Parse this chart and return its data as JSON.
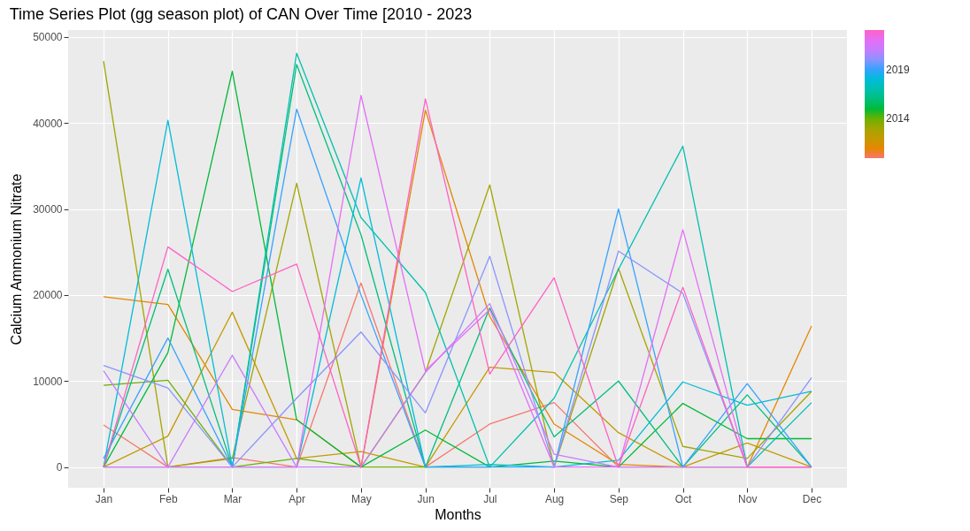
{
  "chart_data": {
    "type": "line",
    "title": "Time Series Plot (gg season plot) of CAN Over Time [2010 - 2023",
    "xlabel": "Months",
    "ylabel": "Calcium Ammonium Nitrate",
    "categories": [
      "Jan",
      "Feb",
      "Mar",
      "Apr",
      "May",
      "Jun",
      "Jul",
      "Aug",
      "Sep",
      "Oct",
      "Nov",
      "Dec"
    ],
    "ylim": [
      -2400,
      50800
    ],
    "yticks": [
      0,
      10000,
      20000,
      30000,
      40000,
      50000
    ],
    "grid": true,
    "clim": [
      2010,
      2023
    ],
    "cticks": [
      2014,
      2019
    ],
    "series": [
      {
        "color": "#f8766d",
        "values": [
          4900,
          0,
          1100,
          0,
          21400,
          0,
          5000,
          7500,
          0,
          0,
          0,
          0
        ]
      },
      {
        "color": "#e58700",
        "values": [
          19800,
          18900,
          6700,
          5500,
          0,
          41500,
          17500,
          5000,
          300,
          0,
          0,
          16400
        ]
      },
      {
        "color": "#c49a00",
        "values": [
          0,
          3600,
          18000,
          1000,
          1800,
          0,
          11600,
          11000,
          4000,
          0,
          2800,
          0
        ]
      },
      {
        "color": "#a3a500",
        "values": [
          47200,
          0,
          1000,
          33000,
          0,
          11000,
          32800,
          0,
          23100,
          2400,
          1000,
          8800
        ]
      },
      {
        "color": "#6bb100",
        "values": [
          9500,
          10100,
          0,
          1000,
          0,
          0,
          0,
          null,
          null,
          null,
          null,
          null
        ]
      },
      {
        "color": "#00ba38",
        "values": [
          0,
          13300,
          46000,
          5500,
          0,
          4300,
          0,
          700,
          0,
          7400,
          3300,
          3300
        ]
      },
      {
        "color": "#00bf7d",
        "values": [
          0,
          23000,
          0,
          46800,
          27000,
          0,
          18500,
          3500,
          10000,
          0,
          8400,
          0
        ]
      },
      {
        "color": "#00c0af",
        "values": [
          0,
          0,
          0,
          48100,
          29000,
          20300,
          0,
          8000,
          23000,
          37300,
          0,
          7500
        ]
      },
      {
        "color": "#00bcd8",
        "values": [
          0,
          40300,
          0,
          0,
          33600,
          0,
          300,
          0,
          800,
          9900,
          7200,
          8800
        ]
      },
      {
        "color": "#35a2ff",
        "values": [
          1000,
          15000,
          0,
          41600,
          20000,
          0,
          0,
          0,
          30000,
          0,
          9700,
          0
        ]
      },
      {
        "color": "#8b93ff",
        "values": [
          11800,
          9200,
          0,
          8000,
          15700,
          6300,
          24500,
          0,
          25100,
          20200,
          0,
          10400
        ]
      },
      {
        "color": "#c77cff",
        "values": [
          11200,
          0,
          13000,
          0,
          0,
          11000,
          19000,
          1500,
          0,
          0,
          0,
          0
        ]
      },
      {
        "color": "#e36ff6",
        "values": [
          0,
          0,
          0,
          0,
          43200,
          11200,
          18300,
          0,
          0,
          27600,
          0,
          0
        ]
      },
      {
        "color": "#ff61c3",
        "values": [
          0,
          25600,
          20400,
          23600,
          0,
          42800,
          10800,
          22000,
          0,
          20900,
          0,
          0
        ]
      }
    ]
  }
}
